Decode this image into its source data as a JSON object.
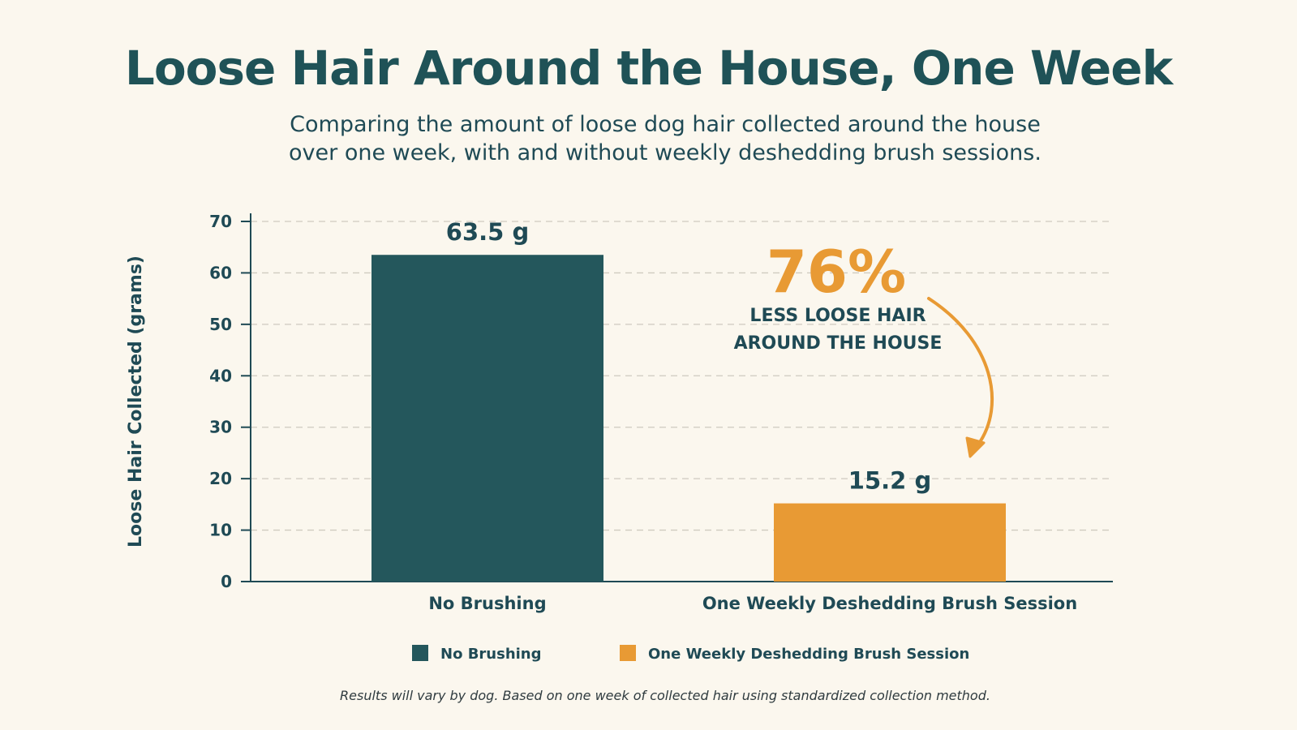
{
  "chart_data": {
    "type": "bar",
    "title": "Loose Hair Around the House, One Week",
    "subtitle_line1": "Comparing the amount of loose dog hair collected around the house",
    "subtitle_line2": "over one week, with and without weekly deshedding brush sessions.",
    "ylabel": "Loose Hair Collected (grams)",
    "xlabel": "",
    "ylim": [
      0,
      70
    ],
    "yticks": [
      0,
      10,
      20,
      30,
      40,
      50,
      60,
      70
    ],
    "grid": true,
    "categories": [
      "No Brushing",
      "One Weekly Deshedding Brush Session"
    ],
    "values": [
      63.5,
      15.2
    ],
    "value_labels": [
      "63.5 g",
      "15.2 g"
    ],
    "colors": [
      "#24575c",
      "#e89a34"
    ],
    "legend": {
      "placement": "bottom",
      "entries": [
        "No Brushing",
        "One Weekly Deshedding Brush Session"
      ]
    },
    "annotation": {
      "percent": "76%",
      "line1": "LESS LOOSE HAIR",
      "line2": "AROUND THE HOUSE",
      "color": "#e89a34"
    },
    "footnote": "Results will vary by dog. Based on one week of collected hair using standardized collection method."
  }
}
